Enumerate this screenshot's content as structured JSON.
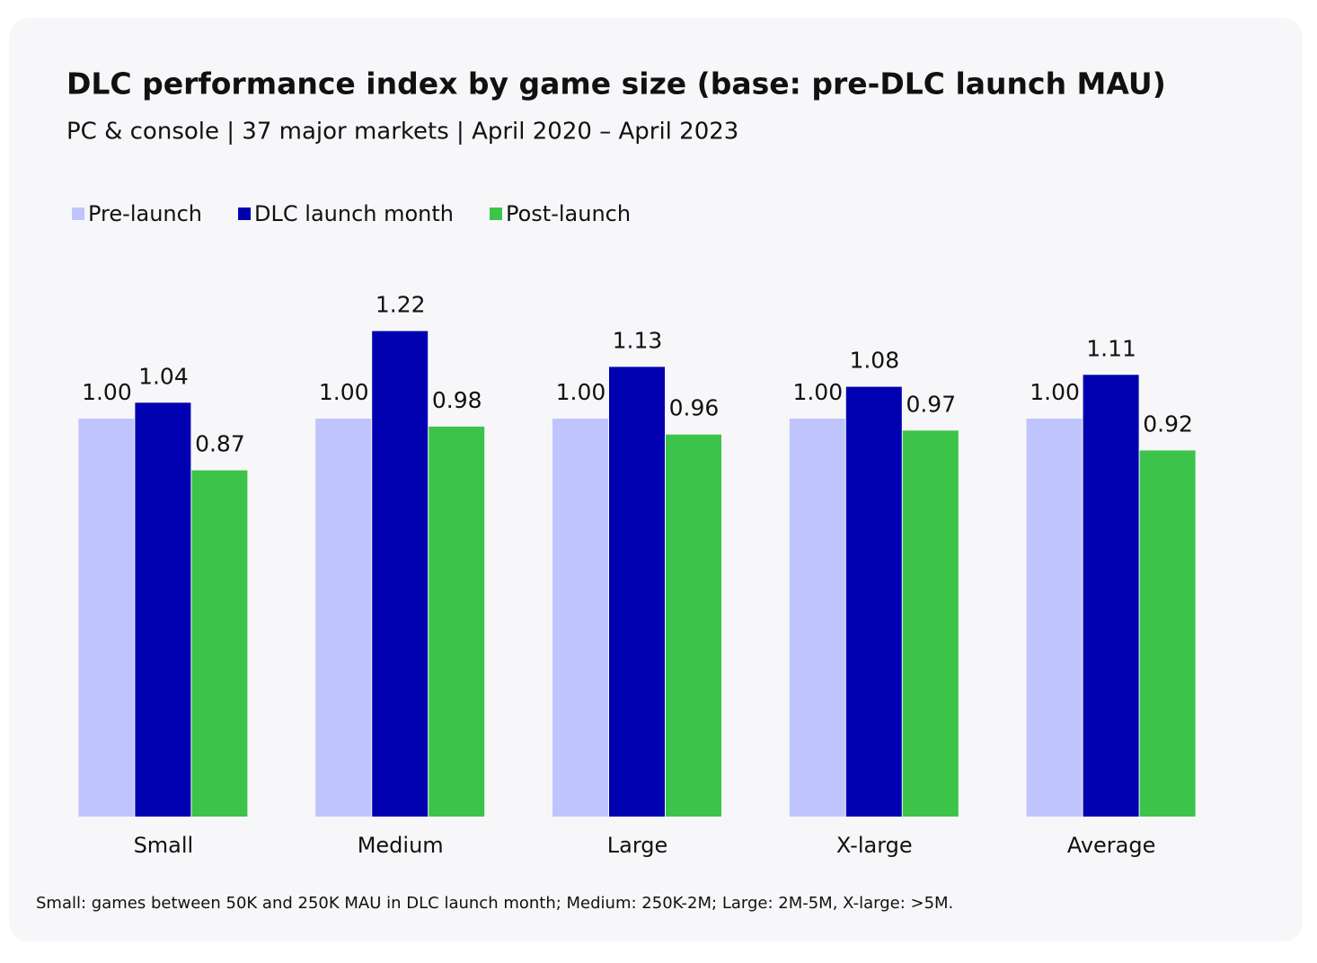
{
  "chart_data": {
    "type": "bar",
    "title": "DLC performance index by game size (base: pre-DLC launch MAU)",
    "subtitle": "PC & console | 37 major markets | April 2020 – April 2023",
    "footnote": "Small: games between 50K and 250K MAU in DLC launch month; Medium: 250K-2M; Large: 2M-5M, X-large: >5M.",
    "categories": [
      "Small",
      "Medium",
      "Large",
      "X-large",
      "Average"
    ],
    "series": [
      {
        "name": "Pre-launch",
        "color": "#c0c4fc",
        "values": [
          1,
          1,
          1,
          1,
          1
        ],
        "value_labels": [
          "1.00",
          "1.00",
          "1.00",
          "1.00",
          "1.00"
        ]
      },
      {
        "name": "DLC launch month",
        "color": "#0000b0",
        "values": [
          1.04,
          1.22,
          1.13,
          1.08,
          1.11
        ],
        "value_labels": [
          "1.04",
          "1.22",
          "1.13",
          "1.08",
          "1.11"
        ]
      },
      {
        "name": "Post-launch",
        "color": "#3cc44a",
        "values": [
          0.87,
          0.98,
          0.96,
          0.97,
          0.92
        ],
        "value_labels": [
          "0.87",
          "0.98",
          "0.96",
          "0.97",
          "0.92"
        ]
      }
    ],
    "legend": "top-left"
  }
}
